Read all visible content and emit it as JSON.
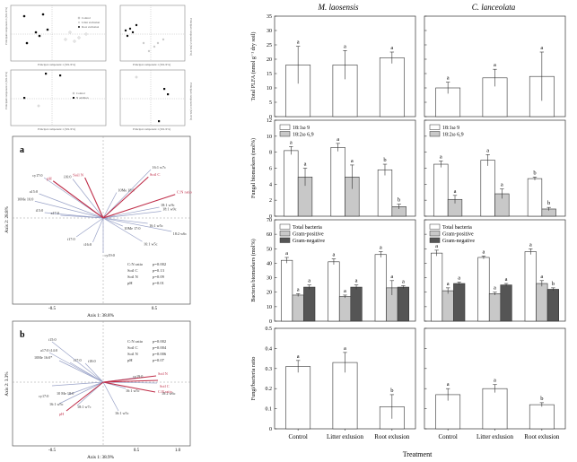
{
  "pca": {
    "pc1_label": "Principal component 1 (XX.X%)",
    "pc2_label": "Principal component 2 (XX.X%)",
    "legend_treatment": [
      "Control",
      "Litter exclusion",
      "Root exclusion"
    ],
    "legend_addition": [
      "Control",
      "N addition"
    ]
  },
  "panel_a": {
    "letter": "a",
    "xlabel": "Axis 1: 38.8%",
    "ylabel": "Axis 2: 28.8%",
    "stats": [
      {
        "var": "C:N ratio",
        "p": "p=0.002"
      },
      {
        "var": "Soil C",
        "p": "p=0.13"
      },
      {
        "var": "Soil N",
        "p": "p=0.09"
      },
      {
        "var": "pH",
        "p": "p=0.01"
      }
    ],
    "ticks_x": [
      "-0.5",
      "0.5"
    ]
  },
  "panel_b": {
    "letter": "b",
    "xlabel": "Axis 1: 38.9%",
    "ylabel": "Axis 2: 3.3%",
    "stats": [
      {
        "var": "C:N ratio",
        "p": "p=0.002"
      },
      {
        "var": "Soil C",
        "p": "p=0.004"
      },
      {
        "var": "Soil N",
        "p": "p=0.006"
      },
      {
        "var": "pH",
        "p": "p=0.07"
      }
    ],
    "ticks_x": [
      "-0.5",
      "0.5",
      "1.0"
    ]
  },
  "right": {
    "col_titles": [
      "M. laosensis",
      "C. lanceolata"
    ],
    "xlabel": "Treatment",
    "categories": [
      "Control",
      "Litter exlusion",
      "Root exlusion"
    ]
  },
  "chart_data": [
    {
      "type": "bar",
      "title": "M. laosensis",
      "ylabel": "Total PLFA (nmol g⁻¹ dry soil)",
      "ylim": [
        0,
        35
      ],
      "yticks": [
        0,
        5,
        10,
        15,
        20,
        25,
        30,
        35
      ],
      "categories": [
        "Control",
        "Litter exlusion",
        "Root exlusion"
      ],
      "series": [
        {
          "values": [
            18,
            18,
            20.5
          ],
          "errors": [
            6.5,
            5,
            2
          ],
          "letters": [
            "a",
            "a",
            "a"
          ]
        }
      ]
    },
    {
      "type": "bar",
      "title": "C. lanceolata",
      "ylim": [
        0,
        35
      ],
      "yticks": [
        0,
        5,
        10,
        15,
        20,
        25,
        30,
        35
      ],
      "categories": [
        "Control",
        "Litter exlusion",
        "Root exlusion"
      ],
      "series": [
        {
          "values": [
            10,
            13.5,
            14
          ],
          "errors": [
            2,
            3,
            8.5
          ],
          "letters": [
            "a",
            "a",
            "a"
          ]
        }
      ]
    },
    {
      "type": "bar",
      "ylabel": "Fungal biomarkers (mol%)",
      "ylim": [
        0,
        12
      ],
      "yticks": [
        0,
        2,
        4,
        6,
        8,
        10,
        12
      ],
      "categories": [
        "Control",
        "Litter exlusion",
        "Root exlusion"
      ],
      "series": [
        {
          "name": "18:1ω 9",
          "values": [
            8.2,
            8.6,
            5.8
          ],
          "errors": [
            0.5,
            0.5,
            0.7
          ],
          "letters": [
            "a",
            "a",
            "b"
          ]
        },
        {
          "name": "18:2ω 6,9",
          "values": [
            4.9,
            4.9,
            1.2
          ],
          "errors": [
            1.1,
            1.5,
            0.3
          ],
          "letters": [
            "a",
            "a",
            "b"
          ]
        }
      ]
    },
    {
      "type": "bar",
      "ylim": [
        0,
        12
      ],
      "yticks": [
        0,
        2,
        4,
        6,
        8,
        10,
        12
      ],
      "categories": [
        "Control",
        "Litter exlusion",
        "Root exlusion"
      ],
      "series": [
        {
          "name": "18:1ω 9",
          "values": [
            6.5,
            7.0,
            4.7
          ],
          "errors": [
            0.4,
            0.7,
            0.2
          ],
          "letters": [
            "a",
            "a",
            "b"
          ]
        },
        {
          "name": "18:2ω 6,9",
          "values": [
            2.1,
            2.8,
            0.9
          ],
          "errors": [
            0.5,
            0.6,
            0.2
          ],
          "letters": [
            "a",
            "a",
            "b"
          ]
        }
      ]
    },
    {
      "type": "bar",
      "ylabel": "Bacteria biomarkers (mol%)",
      "ylim": [
        0,
        70
      ],
      "yticks": [
        0,
        10,
        20,
        30,
        40,
        50,
        60,
        70
      ],
      "categories": [
        "Control",
        "Litter exlusion",
        "Root exlusion"
      ],
      "series": [
        {
          "name": "Total bacteria",
          "values": [
            42,
            41,
            46
          ],
          "errors": [
            2,
            2,
            2
          ],
          "letters": [
            "a",
            "a",
            "a"
          ]
        },
        {
          "name": "Gram-positive",
          "values": [
            18,
            17,
            23
          ],
          "errors": [
            1,
            1,
            5
          ],
          "letters": [
            "a",
            "a",
            "a"
          ]
        },
        {
          "name": "Gram-negative",
          "values": [
            23.5,
            23.5,
            23.5
          ],
          "errors": [
            1.5,
            1.5,
            1
          ],
          "letters": [
            "a",
            "a",
            "a"
          ]
        }
      ]
    },
    {
      "type": "bar",
      "ylim": [
        0,
        70
      ],
      "yticks": [
        0,
        10,
        20,
        30,
        40,
        50,
        60,
        70
      ],
      "categories": [
        "Control",
        "Litter exlusion",
        "Root exlusion"
      ],
      "series": [
        {
          "name": "Total bacteria",
          "values": [
            47,
            44,
            48
          ],
          "errors": [
            2,
            1,
            2
          ],
          "letters": [
            "a",
            "a",
            "a"
          ]
        },
        {
          "name": "Gram-positive",
          "values": [
            21,
            19,
            26
          ],
          "errors": [
            2,
            1,
            2
          ],
          "letters": [
            "a",
            "a",
            "a"
          ]
        },
        {
          "name": "Gram-negative",
          "values": [
            26,
            25,
            22
          ],
          "errors": [
            1,
            1,
            1
          ],
          "letters": [
            "a",
            "a",
            "b"
          ]
        }
      ]
    },
    {
      "type": "bar",
      "ylabel": "Fungi/bacteria ratio",
      "ylim": [
        0,
        0.5
      ],
      "yticks": [
        0.0,
        0.1,
        0.2,
        0.3,
        0.4,
        0.5
      ],
      "categories": [
        "Control",
        "Litter exlusion",
        "Root exlusion"
      ],
      "series": [
        {
          "values": [
            0.31,
            0.33,
            0.11
          ],
          "errors": [
            0.03,
            0.05,
            0.06
          ],
          "letters": [
            "a",
            "a",
            "b"
          ]
        }
      ]
    },
    {
      "type": "bar",
      "ylim": [
        0,
        0.5
      ],
      "yticks": [
        0.0,
        0.1,
        0.2,
        0.3,
        0.4,
        0.5
      ],
      "categories": [
        "Control",
        "Litter exlusion",
        "Root exlusion"
      ],
      "series": [
        {
          "values": [
            0.17,
            0.2,
            0.12
          ],
          "errors": [
            0.03,
            0.02,
            0.01
          ],
          "letters": [
            "a",
            "a",
            "b"
          ]
        }
      ]
    },
    {
      "type": "scatter",
      "letter": "a",
      "xlabel": "Axis 1: 38.8%",
      "ylabel": "Axis 2: 28.8%",
      "env_vectors": [
        {
          "label": "pH",
          "x": -0.82,
          "y": 0.55
        },
        {
          "label": "Soil N",
          "x": -0.3,
          "y": 0.6
        },
        {
          "label": "Soil C",
          "x": 0.74,
          "y": 0.61
        },
        {
          "label": "C:N ratio",
          "x": 1.18,
          "y": 0.35
        }
      ],
      "species": [
        {
          "label": "16:1 w7c",
          "x": 0.78,
          "y": 0.72
        },
        {
          "label": "i16:0",
          "x": -0.5,
          "y": 0.58
        },
        {
          "label": "cy17:0",
          "x": -0.97,
          "y": 0.6
        },
        {
          "label": "10Me 18:0",
          "x": 0.22,
          "y": 0.38
        },
        {
          "label": "a15:0",
          "x": -1.05,
          "y": 0.36
        },
        {
          "label": "10Me 16:0",
          "x": -1.12,
          "y": 0.25
        },
        {
          "label": "i15:0",
          "x": -0.96,
          "y": 0.08
        },
        {
          "label": "a17:0",
          "x": -0.7,
          "y": 0.04
        },
        {
          "label": "18:1 w9c",
          "x": 0.92,
          "y": 0.16
        },
        {
          "label": "16:1 w5c",
          "x": 0.73,
          "y": -0.08
        },
        {
          "label": "10Me 17:0",
          "x": 0.32,
          "y": -0.12
        },
        {
          "label": "i17:0",
          "x": -0.44,
          "y": -0.28
        },
        {
          "label": "i16:0",
          "x": -0.17,
          "y": -0.36
        },
        {
          "label": "cy19:0",
          "x": 0.0,
          "y": -0.52
        },
        {
          "label": "16:1 w5c",
          "x": 0.64,
          "y": -0.35
        },
        {
          "label": "18:2 w6c",
          "x": 1.12,
          "y": -0.2
        },
        {
          "label": "18:1 w9c",
          "x": 0.95,
          "y": 0.1
        }
      ]
    }
  ]
}
